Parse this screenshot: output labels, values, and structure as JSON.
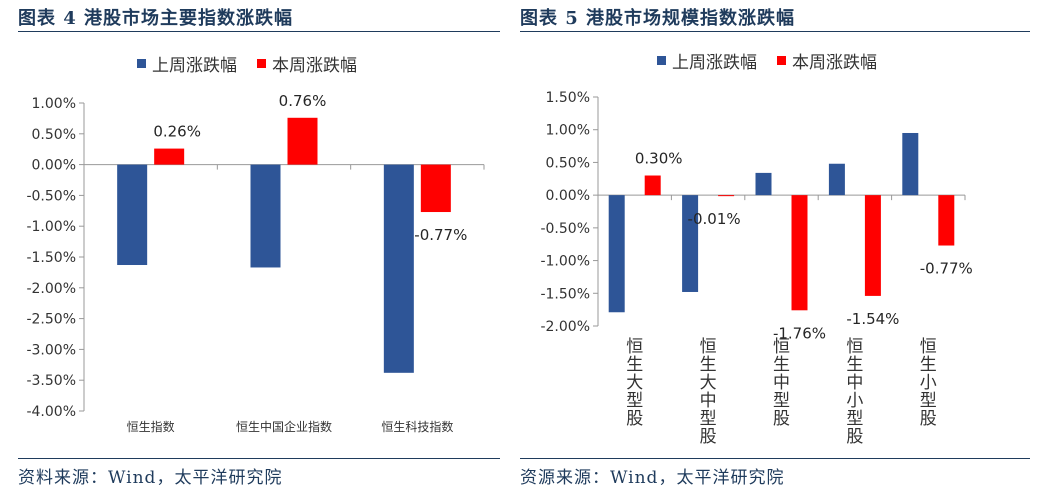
{
  "colors": {
    "prev": "#2e5597",
    "curr": "#ff0000",
    "title": "#1f3b5c",
    "axis": "#999999"
  },
  "left": {
    "title": "图表 4 港股市场主要指数涨跌幅",
    "source": "资料来源：Wind，太平洋研究院",
    "legend": [
      "上周涨跌幅",
      "本周涨跌幅"
    ]
  },
  "right": {
    "title": "图表 5 港股市场规模指数涨跌幅",
    "source": "资源来源：Wind，太平洋研究院",
    "legend": [
      "上周涨跌幅",
      "本周涨跌幅"
    ]
  },
  "chart_data": [
    {
      "type": "bar",
      "categories": [
        "恒生指数",
        "恒生中国企业指数",
        "恒生科技指数"
      ],
      "series": [
        {
          "name": "上周涨跌幅",
          "values": [
            -1.63,
            -1.67,
            -3.38
          ]
        },
        {
          "name": "本周涨跌幅",
          "values": [
            0.26,
            0.76,
            -0.77
          ]
        }
      ],
      "data_labels": [
        "0.26%",
        "0.76%",
        "-0.77%"
      ],
      "yticks": [
        "1.00%",
        "0.50%",
        "0.00%",
        "-0.50%",
        "-1.00%",
        "-1.50%",
        "-2.00%",
        "-2.50%",
        "-3.00%",
        "-3.50%",
        "-4.00%"
      ],
      "ylim": [
        -4.0,
        1.0
      ],
      "legend_position": "top"
    },
    {
      "type": "bar",
      "categories": [
        "恒生大型股",
        "恒生大中型股",
        "恒生中型股",
        "恒生中小型股",
        "恒生小型股"
      ],
      "series": [
        {
          "name": "上周涨跌幅",
          "values": [
            -1.79,
            -1.48,
            0.34,
            0.48,
            0.95
          ]
        },
        {
          "name": "本周涨跌幅",
          "values": [
            0.3,
            -0.01,
            -1.76,
            -1.54,
            -0.77
          ]
        }
      ],
      "data_labels": [
        "0.30%",
        "-0.01%",
        "-1.76%",
        "-1.54%",
        "-0.77%"
      ],
      "yticks": [
        "1.50%",
        "1.00%",
        "0.50%",
        "0.00%",
        "-0.50%",
        "-1.00%",
        "-1.50%",
        "-2.00%"
      ],
      "ylim": [
        -2.0,
        1.5
      ],
      "legend_position": "top"
    }
  ]
}
